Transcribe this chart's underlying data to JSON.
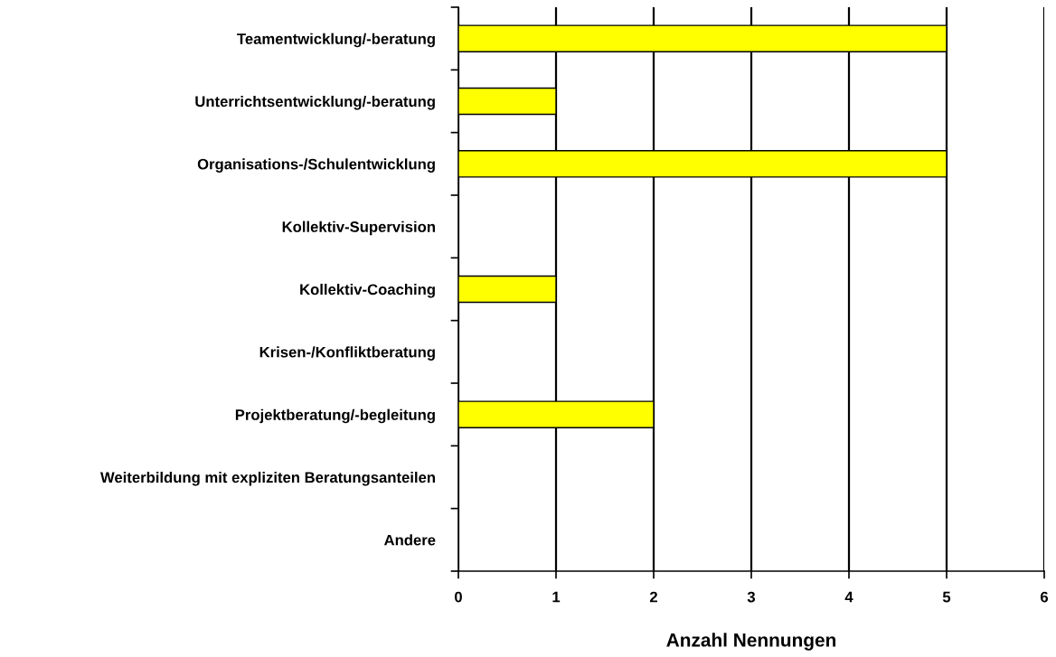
{
  "chart_data": {
    "type": "bar",
    "orientation": "horizontal",
    "xlabel": "Anzahl Nennungen",
    "categories": [
      "Teamentwicklung/-beratung",
      "Unterrichtsentwicklung/-beratung",
      "Organisations-/Schulentwicklung",
      "Kollektiv-Supervision",
      "Kollektiv-Coaching",
      "Krisen-/Konfliktberatung",
      "Projektberatung/-begleitung",
      "Weiterbildung mit expliziten Beratungsanteilen",
      "Andere"
    ],
    "values": [
      5,
      1,
      5,
      0,
      1,
      0,
      2,
      0,
      0
    ],
    "color": "#ffff00",
    "xlim": [
      0,
      6
    ],
    "xticks": [
      0,
      1,
      2,
      3,
      4,
      5,
      6
    ],
    "grid": "x",
    "legend": false
  }
}
